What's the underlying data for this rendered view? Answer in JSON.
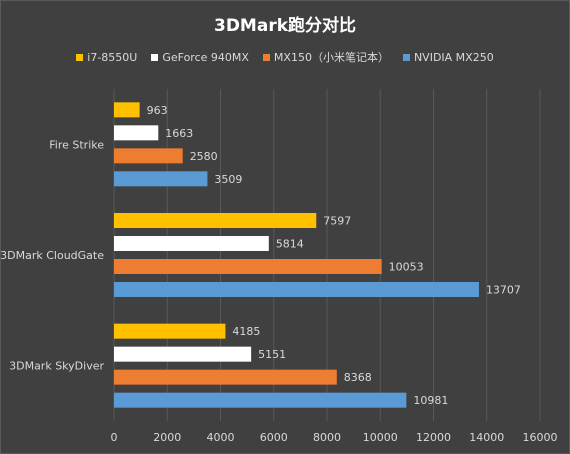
{
  "chart_data": {
    "type": "bar",
    "orientation": "horizontal",
    "title": "3DMark跑分对比",
    "categories": [
      "Fire Strike",
      "3DMark CloudGate",
      "3DMark SkyDiver"
    ],
    "series": [
      {
        "name": "i7-8550U",
        "color": "#ffc000",
        "values": [
          963,
          7597,
          4185
        ]
      },
      {
        "name": "GeForce 940MX",
        "color": "#ffffff",
        "values": [
          1663,
          5814,
          5151
        ]
      },
      {
        "name": "MX150（小米笔记本）",
        "color": "#ed7d31",
        "values": [
          2580,
          10053,
          8368
        ]
      },
      {
        "name": "NVIDIA MX250",
        "color": "#5b9bd5",
        "values": [
          3509,
          13707,
          10981
        ]
      }
    ],
    "xlim": [
      0,
      16000
    ],
    "xticks": [
      0,
      2000,
      4000,
      6000,
      8000,
      10000,
      12000,
      14000,
      16000
    ],
    "grid": true,
    "legend_position": "top",
    "data_labels": true
  }
}
